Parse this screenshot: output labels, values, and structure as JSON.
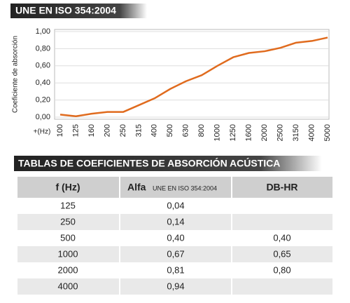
{
  "chart_data": {
    "type": "line",
    "title": "UNE EN ISO 354:2004",
    "y_label": "Coeficiente de absorción",
    "x_label": "+(Hz)",
    "categories": [
      "100",
      "125",
      "160",
      "200",
      "250",
      "315",
      "400",
      "500",
      "630",
      "800",
      "1000",
      "1250",
      "1600",
      "2000",
      "2500",
      "3150",
      "4000",
      "5000"
    ],
    "series": [
      {
        "name": "Alfa",
        "color": "#e06b1e",
        "values": [
          0.03,
          0.01,
          0.04,
          0.06,
          0.06,
          0.14,
          0.22,
          0.33,
          0.42,
          0.49,
          0.6,
          0.7,
          0.75,
          0.77,
          0.81,
          0.87,
          0.89,
          0.93
        ]
      }
    ],
    "ylim": [
      0,
      1
    ],
    "yticks": [
      {
        "value": 0,
        "label": "0,00"
      },
      {
        "value": 0.2,
        "label": "0,20"
      },
      {
        "value": 0.4,
        "label": "0,40"
      },
      {
        "value": 0.6,
        "label": "0,60"
      },
      {
        "value": 0.8,
        "label": "0,80"
      },
      {
        "value": 1,
        "label": "1,00"
      }
    ],
    "grid": true
  },
  "table": {
    "title": "TABLAS DE COEFICIENTES DE ABSORCIÓN ACÚSTICA",
    "headers": {
      "f": "f (Hz)",
      "alfa": "Alfa",
      "alfa_note": "UNE EN ISO 354:2004",
      "dbhr": "DB-HR"
    },
    "rows": [
      {
        "f": "125",
        "alfa": "0,04"
      },
      {
        "f": "250",
        "alfa": "0,14"
      },
      {
        "f": "500",
        "alfa": "0,40",
        "dbhr": "0,40"
      },
      {
        "f": "1000",
        "alfa": "0,67",
        "dbhr": "0,65"
      },
      {
        "f": "2000",
        "alfa": "0,81",
        "dbhr": "0,80"
      },
      {
        "f": "4000",
        "alfa": "0,94"
      }
    ]
  }
}
